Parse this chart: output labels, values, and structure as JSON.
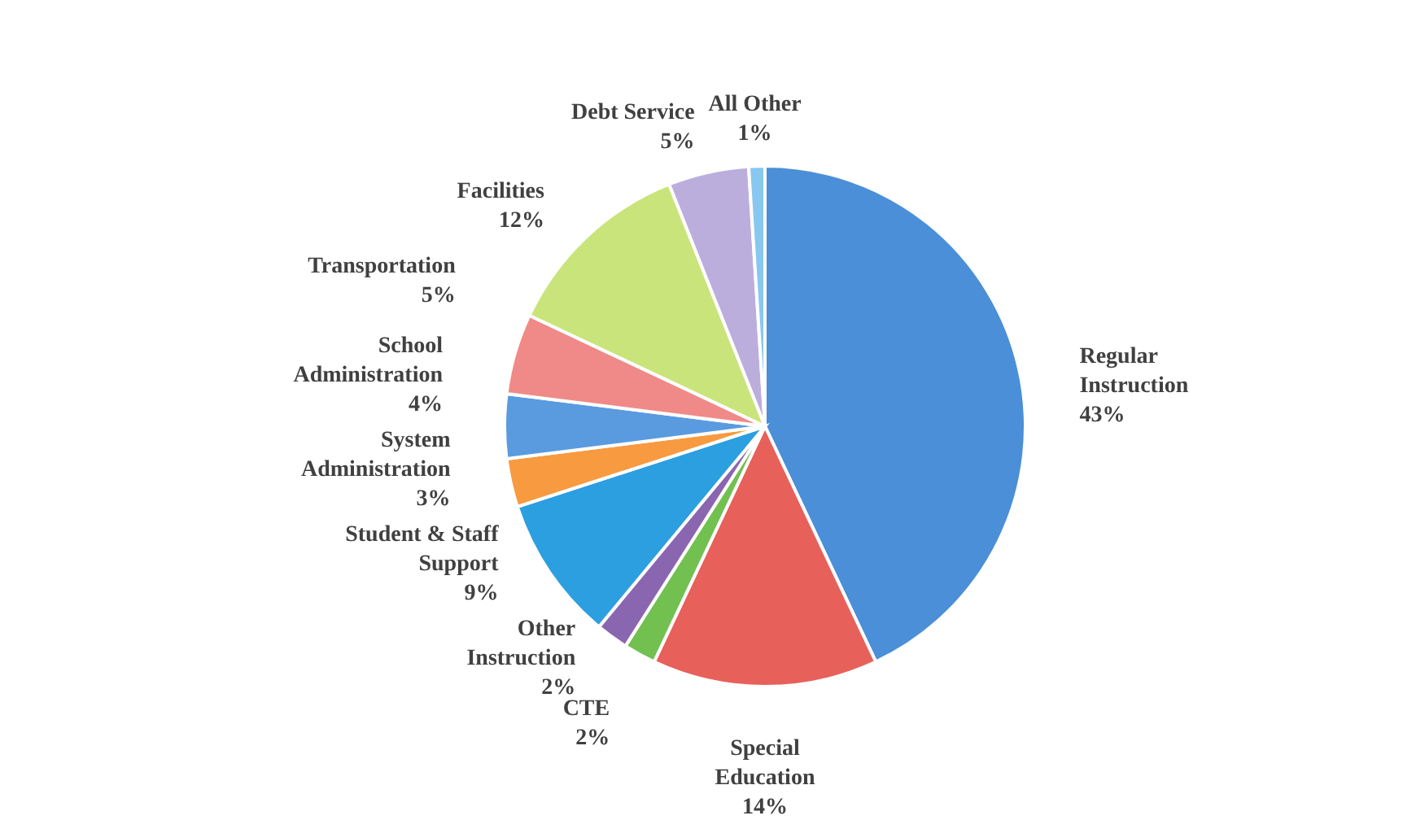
{
  "chart_data": {
    "type": "pie",
    "categories": [
      "Regular Instruction",
      "Special Education",
      "CTE",
      "Other Instruction",
      "Student & Staff Support",
      "System Administration",
      "School Administration",
      "Transportation",
      "Facilities",
      "Debt Service",
      "All Other"
    ],
    "values": [
      43,
      14,
      2,
      2,
      9,
      3,
      4,
      5,
      12,
      5,
      1
    ],
    "value_labels": [
      "43%",
      "14%",
      "2%",
      "2%",
      "9%",
      "3%",
      "4%",
      "5%",
      "12%",
      "5%",
      "1%"
    ],
    "colors": [
      "#4a8fd8",
      "#e8605a",
      "#72c050",
      "#8a66b0",
      "#2c9fe0",
      "#f89a40",
      "#5a9be0",
      "#f08a88",
      "#c9e47a",
      "#bcaedc",
      "#88c8f0"
    ]
  }
}
